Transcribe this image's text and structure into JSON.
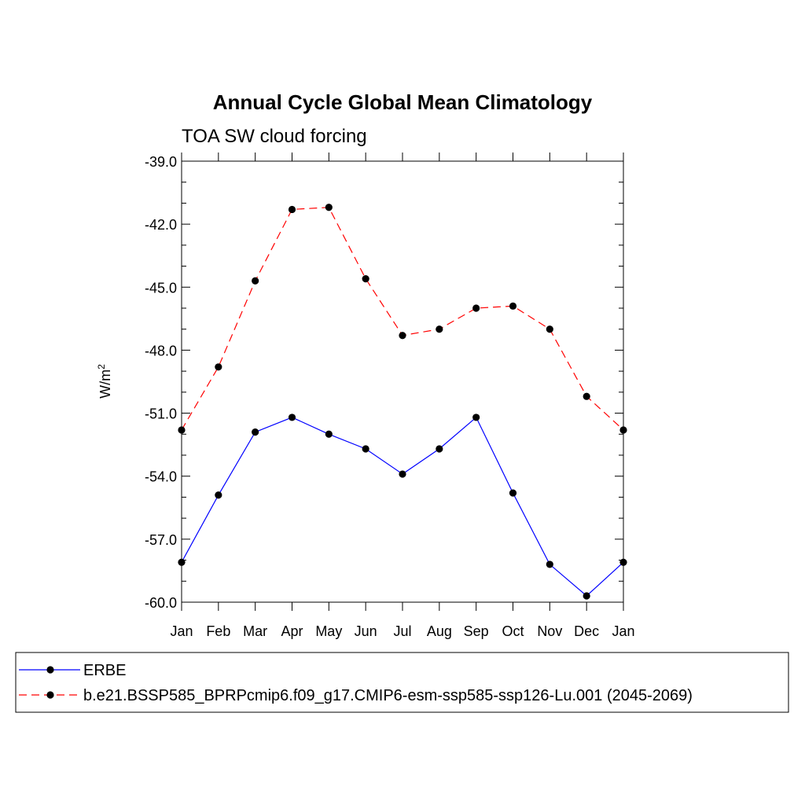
{
  "chart_data": {
    "type": "line",
    "title": "Annual Cycle Global Mean Climatology",
    "subtitle": "TOA SW cloud forcing",
    "xlabel": "",
    "ylabel": "W/m",
    "ylabel_superscript": "2",
    "categories": [
      "Jan",
      "Feb",
      "Mar",
      "Apr",
      "May",
      "Jun",
      "Jul",
      "Aug",
      "Sep",
      "Oct",
      "Nov",
      "Dec",
      "Jan"
    ],
    "ylim": [
      -60.0,
      -39.0
    ],
    "yticks": [
      "-39.0",
      "-42.0",
      "-45.0",
      "-48.0",
      "-51.0",
      "-54.0",
      "-57.0",
      "-60.0"
    ],
    "ytick_values": [
      -39,
      -42,
      -45,
      -48,
      -51,
      -54,
      -57,
      -60
    ],
    "grid": false,
    "legend_position": "bottom",
    "series": [
      {
        "name": "ERBE",
        "color": "#0000ff",
        "dashed": false,
        "values": [
          -58.1,
          -54.9,
          -51.9,
          -51.2,
          -52.0,
          -52.7,
          -53.9,
          -52.7,
          -51.2,
          -54.8,
          -58.2,
          -59.7,
          -58.1
        ]
      },
      {
        "name": "b.e21.BSSP585_BPRPcmip6.f09_g17.CMIP6-esm-ssp585-ssp126-Lu.001 (2045-2069)",
        "color": "#ff0000",
        "dashed": true,
        "values": [
          -51.8,
          -48.8,
          -44.7,
          -41.3,
          -41.2,
          -44.6,
          -47.3,
          -47.0,
          -46.0,
          -45.9,
          -47.0,
          -50.2,
          -51.8
        ]
      }
    ]
  }
}
